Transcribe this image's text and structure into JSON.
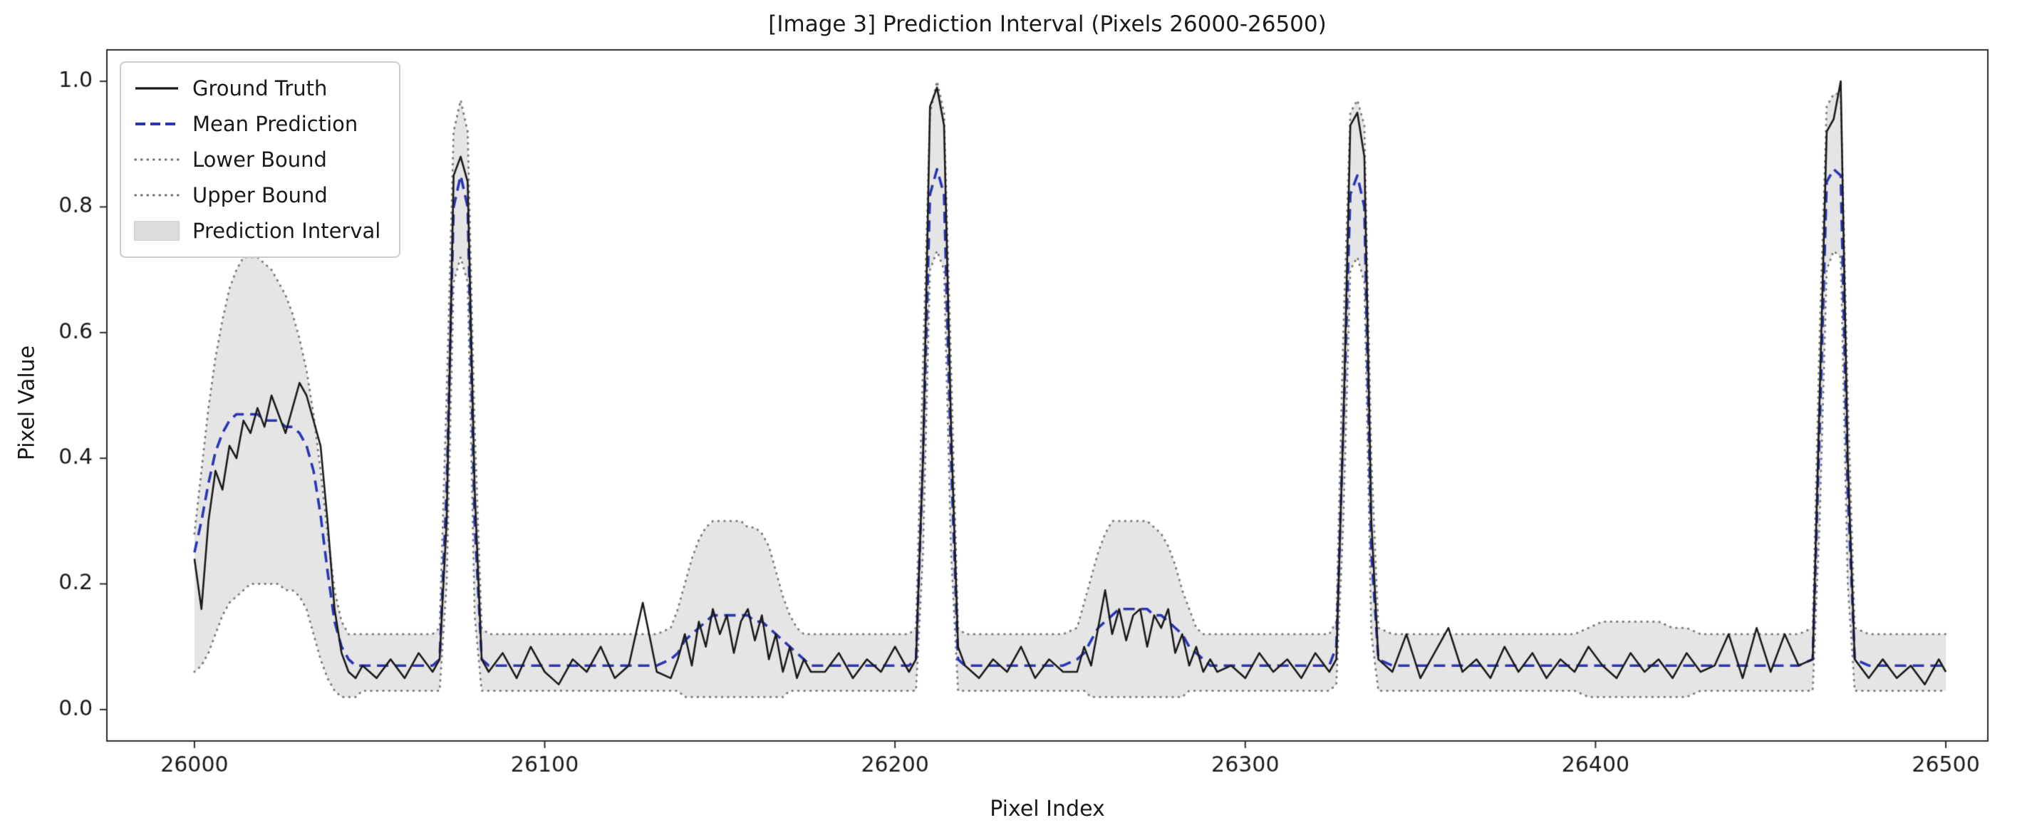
{
  "figure": {
    "background": "#ffffff"
  },
  "chart_data": {
    "type": "line",
    "title": "[Image 3] Prediction Interval (Pixels 26000-26500)",
    "xlabel": "Pixel Index",
    "ylabel": "Pixel Value",
    "xlim": [
      25975,
      26512
    ],
    "ylim": [
      -0.05,
      1.05
    ],
    "xticks": [
      26000,
      26100,
      26200,
      26300,
      26400,
      26500
    ],
    "yticks": [
      0.0,
      0.2,
      0.4,
      0.6,
      0.8,
      1.0
    ],
    "grid": false,
    "legend_position": "upper-left",
    "colors": {
      "ground_truth": "#1a1a1a",
      "mean_prediction": "#2a35b5",
      "bounds": "#7a7a7a",
      "interval_fill": "#dcdcdc",
      "spine": "#2a2a2a",
      "tick_label": "#1a1a1a"
    },
    "legend": [
      {
        "label": "Ground Truth",
        "style": "solid",
        "color": "#1a1a1a"
      },
      {
        "label": "Mean Prediction",
        "style": "dashed",
        "color": "#2a35b5"
      },
      {
        "label": "Lower Bound",
        "style": "dotted",
        "color": "#7a7a7a"
      },
      {
        "label": "Upper Bound",
        "style": "dotted",
        "color": "#7a7a7a"
      },
      {
        "label": "Prediction Interval",
        "style": "fill",
        "color": "#dcdcdc"
      }
    ],
    "x": [
      26000,
      26002,
      26004,
      26006,
      26008,
      26010,
      26012,
      26014,
      26016,
      26018,
      26020,
      26022,
      26024,
      26026,
      26028,
      26030,
      26032,
      26034,
      26036,
      26038,
      26040,
      26042,
      26044,
      26046,
      26048,
      26052,
      26056,
      26060,
      26064,
      26068,
      26070,
      26072,
      26074,
      26076,
      26078,
      26080,
      26082,
      26084,
      26088,
      26092,
      26096,
      26100,
      26104,
      26108,
      26112,
      26116,
      26120,
      26124,
      26128,
      26132,
      26136,
      26138,
      26140,
      26142,
      26144,
      26146,
      26148,
      26150,
      26152,
      26154,
      26156,
      26158,
      26160,
      26162,
      26164,
      26166,
      26168,
      26170,
      26172,
      26174,
      26176,
      26180,
      26184,
      26188,
      26192,
      26196,
      26200,
      26204,
      26206,
      26208,
      26210,
      26212,
      26214,
      26216,
      26218,
      26220,
      26224,
      26228,
      26232,
      26236,
      26240,
      26244,
      26248,
      26252,
      26254,
      26256,
      26258,
      26260,
      26262,
      26264,
      26266,
      26268,
      26270,
      26272,
      26274,
      26276,
      26278,
      26280,
      26282,
      26284,
      26286,
      26288,
      26290,
      26292,
      26296,
      26300,
      26304,
      26308,
      26312,
      26316,
      26320,
      26324,
      26326,
      26328,
      26330,
      26332,
      26334,
      26336,
      26338,
      26342,
      26346,
      26350,
      26354,
      26358,
      26362,
      26366,
      26370,
      26374,
      26378,
      26382,
      26386,
      26390,
      26394,
      26398,
      26402,
      26406,
      26410,
      26414,
      26418,
      26422,
      26426,
      26430,
      26434,
      26438,
      26442,
      26446,
      26450,
      26454,
      26458,
      26462,
      26464,
      26466,
      26468,
      26470,
      26472,
      26474,
      26478,
      26482,
      26486,
      26490,
      26494,
      26498,
      26500
    ],
    "series": [
      {
        "name": "Ground Truth",
        "values": [
          0.24,
          0.16,
          0.3,
          0.38,
          0.35,
          0.42,
          0.4,
          0.46,
          0.44,
          0.48,
          0.45,
          0.5,
          0.47,
          0.44,
          0.48,
          0.52,
          0.5,
          0.46,
          0.42,
          0.3,
          0.16,
          0.09,
          0.06,
          0.05,
          0.07,
          0.05,
          0.08,
          0.05,
          0.09,
          0.06,
          0.08,
          0.3,
          0.85,
          0.88,
          0.84,
          0.35,
          0.08,
          0.06,
          0.09,
          0.05,
          0.1,
          0.06,
          0.04,
          0.08,
          0.06,
          0.1,
          0.05,
          0.07,
          0.17,
          0.06,
          0.05,
          0.08,
          0.12,
          0.07,
          0.14,
          0.1,
          0.16,
          0.12,
          0.15,
          0.09,
          0.14,
          0.16,
          0.11,
          0.15,
          0.08,
          0.12,
          0.06,
          0.1,
          0.05,
          0.08,
          0.06,
          0.06,
          0.09,
          0.05,
          0.08,
          0.06,
          0.1,
          0.06,
          0.08,
          0.4,
          0.96,
          0.99,
          0.93,
          0.45,
          0.1,
          0.07,
          0.05,
          0.08,
          0.06,
          0.1,
          0.05,
          0.08,
          0.06,
          0.06,
          0.1,
          0.07,
          0.13,
          0.19,
          0.12,
          0.16,
          0.11,
          0.15,
          0.16,
          0.1,
          0.15,
          0.13,
          0.16,
          0.09,
          0.12,
          0.07,
          0.1,
          0.06,
          0.08,
          0.06,
          0.07,
          0.05,
          0.09,
          0.06,
          0.08,
          0.05,
          0.09,
          0.06,
          0.08,
          0.45,
          0.93,
          0.95,
          0.88,
          0.3,
          0.08,
          0.06,
          0.12,
          0.05,
          0.09,
          0.13,
          0.06,
          0.08,
          0.05,
          0.1,
          0.06,
          0.09,
          0.05,
          0.08,
          0.06,
          0.1,
          0.07,
          0.05,
          0.09,
          0.06,
          0.08,
          0.05,
          0.09,
          0.06,
          0.07,
          0.12,
          0.05,
          0.13,
          0.06,
          0.12,
          0.07,
          0.08,
          0.5,
          0.92,
          0.94,
          1.0,
          0.4,
          0.08,
          0.05,
          0.08,
          0.05,
          0.07,
          0.04,
          0.08,
          0.06
        ]
      },
      {
        "name": "Mean Prediction",
        "values": [
          0.25,
          0.3,
          0.36,
          0.41,
          0.44,
          0.46,
          0.47,
          0.47,
          0.47,
          0.47,
          0.46,
          0.46,
          0.46,
          0.45,
          0.45,
          0.44,
          0.42,
          0.38,
          0.31,
          0.22,
          0.14,
          0.1,
          0.08,
          0.07,
          0.07,
          0.07,
          0.07,
          0.07,
          0.07,
          0.07,
          0.08,
          0.35,
          0.8,
          0.85,
          0.8,
          0.3,
          0.08,
          0.07,
          0.07,
          0.07,
          0.07,
          0.07,
          0.07,
          0.07,
          0.07,
          0.07,
          0.07,
          0.07,
          0.07,
          0.07,
          0.08,
          0.09,
          0.11,
          0.12,
          0.13,
          0.14,
          0.15,
          0.15,
          0.15,
          0.15,
          0.15,
          0.15,
          0.14,
          0.14,
          0.13,
          0.12,
          0.11,
          0.1,
          0.09,
          0.08,
          0.07,
          0.07,
          0.07,
          0.07,
          0.07,
          0.07,
          0.07,
          0.07,
          0.08,
          0.4,
          0.82,
          0.86,
          0.82,
          0.4,
          0.08,
          0.07,
          0.07,
          0.07,
          0.07,
          0.07,
          0.07,
          0.07,
          0.07,
          0.08,
          0.09,
          0.11,
          0.13,
          0.14,
          0.15,
          0.16,
          0.16,
          0.16,
          0.16,
          0.16,
          0.15,
          0.15,
          0.14,
          0.13,
          0.12,
          0.1,
          0.09,
          0.08,
          0.07,
          0.07,
          0.07,
          0.07,
          0.07,
          0.07,
          0.07,
          0.07,
          0.07,
          0.07,
          0.1,
          0.45,
          0.82,
          0.85,
          0.8,
          0.25,
          0.08,
          0.07,
          0.07,
          0.07,
          0.07,
          0.07,
          0.07,
          0.07,
          0.07,
          0.07,
          0.07,
          0.07,
          0.07,
          0.07,
          0.07,
          0.07,
          0.07,
          0.07,
          0.07,
          0.07,
          0.07,
          0.07,
          0.07,
          0.07,
          0.07,
          0.07,
          0.07,
          0.07,
          0.07,
          0.07,
          0.07,
          0.08,
          0.45,
          0.84,
          0.86,
          0.85,
          0.35,
          0.08,
          0.07,
          0.07,
          0.07,
          0.07,
          0.07,
          0.07,
          0.07
        ]
      },
      {
        "name": "Lower Bound",
        "values": [
          0.06,
          0.07,
          0.09,
          0.12,
          0.15,
          0.17,
          0.18,
          0.19,
          0.2,
          0.2,
          0.2,
          0.2,
          0.2,
          0.19,
          0.19,
          0.18,
          0.16,
          0.12,
          0.08,
          0.05,
          0.03,
          0.02,
          0.02,
          0.02,
          0.03,
          0.03,
          0.03,
          0.03,
          0.03,
          0.03,
          0.03,
          0.2,
          0.68,
          0.72,
          0.68,
          0.15,
          0.03,
          0.03,
          0.03,
          0.03,
          0.03,
          0.03,
          0.03,
          0.03,
          0.03,
          0.03,
          0.03,
          0.03,
          0.03,
          0.03,
          0.03,
          0.03,
          0.02,
          0.02,
          0.02,
          0.02,
          0.02,
          0.02,
          0.02,
          0.02,
          0.02,
          0.02,
          0.02,
          0.02,
          0.02,
          0.02,
          0.02,
          0.03,
          0.03,
          0.03,
          0.03,
          0.03,
          0.03,
          0.03,
          0.03,
          0.03,
          0.03,
          0.03,
          0.03,
          0.25,
          0.7,
          0.73,
          0.7,
          0.25,
          0.03,
          0.03,
          0.03,
          0.03,
          0.03,
          0.03,
          0.03,
          0.03,
          0.03,
          0.03,
          0.03,
          0.02,
          0.02,
          0.02,
          0.02,
          0.02,
          0.02,
          0.02,
          0.02,
          0.02,
          0.02,
          0.02,
          0.02,
          0.02,
          0.02,
          0.03,
          0.03,
          0.03,
          0.03,
          0.03,
          0.03,
          0.03,
          0.03,
          0.03,
          0.03,
          0.03,
          0.03,
          0.03,
          0.04,
          0.3,
          0.7,
          0.72,
          0.68,
          0.12,
          0.03,
          0.03,
          0.03,
          0.03,
          0.03,
          0.03,
          0.03,
          0.03,
          0.03,
          0.03,
          0.03,
          0.03,
          0.03,
          0.03,
          0.03,
          0.02,
          0.02,
          0.02,
          0.02,
          0.02,
          0.02,
          0.02,
          0.02,
          0.03,
          0.03,
          0.03,
          0.03,
          0.03,
          0.03,
          0.03,
          0.03,
          0.03,
          0.3,
          0.7,
          0.73,
          0.72,
          0.2,
          0.03,
          0.03,
          0.03,
          0.03,
          0.03,
          0.03,
          0.03,
          0.03
        ]
      },
      {
        "name": "Upper Bound",
        "values": [
          0.28,
          0.38,
          0.48,
          0.56,
          0.62,
          0.67,
          0.7,
          0.72,
          0.72,
          0.72,
          0.71,
          0.7,
          0.68,
          0.66,
          0.63,
          0.59,
          0.54,
          0.47,
          0.38,
          0.28,
          0.19,
          0.14,
          0.12,
          0.12,
          0.12,
          0.12,
          0.12,
          0.12,
          0.12,
          0.12,
          0.13,
          0.5,
          0.92,
          0.97,
          0.92,
          0.45,
          0.13,
          0.12,
          0.12,
          0.12,
          0.12,
          0.12,
          0.12,
          0.12,
          0.12,
          0.12,
          0.12,
          0.12,
          0.12,
          0.12,
          0.13,
          0.16,
          0.2,
          0.24,
          0.27,
          0.29,
          0.3,
          0.3,
          0.3,
          0.3,
          0.3,
          0.29,
          0.29,
          0.28,
          0.26,
          0.22,
          0.18,
          0.15,
          0.13,
          0.12,
          0.12,
          0.12,
          0.12,
          0.12,
          0.12,
          0.12,
          0.12,
          0.12,
          0.13,
          0.55,
          0.95,
          1.0,
          0.95,
          0.55,
          0.13,
          0.12,
          0.12,
          0.12,
          0.12,
          0.12,
          0.12,
          0.12,
          0.12,
          0.13,
          0.17,
          0.21,
          0.25,
          0.28,
          0.3,
          0.3,
          0.3,
          0.3,
          0.3,
          0.3,
          0.29,
          0.28,
          0.26,
          0.23,
          0.19,
          0.16,
          0.13,
          0.12,
          0.12,
          0.12,
          0.12,
          0.12,
          0.12,
          0.12,
          0.12,
          0.12,
          0.12,
          0.12,
          0.14,
          0.6,
          0.95,
          0.97,
          0.93,
          0.4,
          0.13,
          0.12,
          0.12,
          0.12,
          0.12,
          0.12,
          0.12,
          0.12,
          0.12,
          0.12,
          0.12,
          0.12,
          0.12,
          0.12,
          0.12,
          0.13,
          0.14,
          0.14,
          0.14,
          0.14,
          0.14,
          0.13,
          0.13,
          0.12,
          0.12,
          0.12,
          0.12,
          0.12,
          0.12,
          0.12,
          0.12,
          0.13,
          0.6,
          0.96,
          0.98,
          0.98,
          0.5,
          0.13,
          0.12,
          0.12,
          0.12,
          0.12,
          0.12,
          0.12,
          0.12
        ]
      }
    ]
  }
}
